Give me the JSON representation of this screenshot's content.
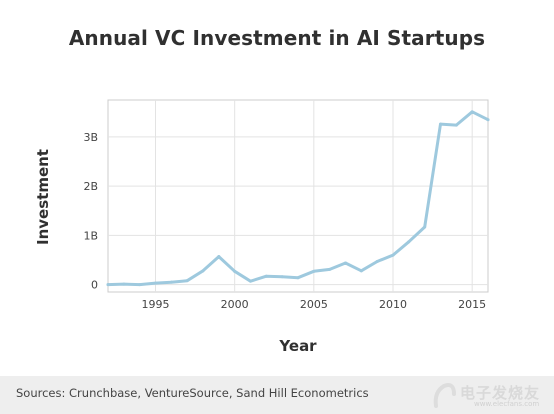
{
  "chart_data": {
    "type": "line",
    "title": "Annual VC Investment in AI Startups",
    "xlabel": "Year",
    "ylabel": "Investment",
    "x": [
      1992,
      1993,
      1994,
      1995,
      1996,
      1997,
      1998,
      1999,
      2000,
      2001,
      2002,
      2003,
      2004,
      2005,
      2006,
      2007,
      2008,
      2009,
      2010,
      2011,
      2012,
      2013,
      2014,
      2015,
      2016
    ],
    "series": [
      {
        "values": [
          0.0,
          0.01,
          0.0,
          0.03,
          0.05,
          0.08,
          0.28,
          0.57,
          0.27,
          0.07,
          0.17,
          0.16,
          0.14,
          0.27,
          0.31,
          0.44,
          0.28,
          0.47,
          0.6,
          0.87,
          1.17,
          3.26,
          3.24,
          3.51,
          3.35
        ],
        "color": "#9ec9de"
      }
    ],
    "xlim": [
      1992,
      2016
    ],
    "ylim": [
      -0.15,
      3.75
    ],
    "x_ticks": [
      1995,
      2000,
      2005,
      2010,
      2015
    ],
    "y_ticks": [
      0,
      1,
      2,
      3
    ],
    "y_tick_labels": [
      "0",
      "1B",
      "2B",
      "3B"
    ],
    "grid": true,
    "legend": "none"
  },
  "footer": {
    "source": "Sources: Crunchbase, VentureSource, Sand Hill Econometrics"
  },
  "watermark": {
    "text": "电子发烧友",
    "sub": "www.elecfans.com"
  }
}
